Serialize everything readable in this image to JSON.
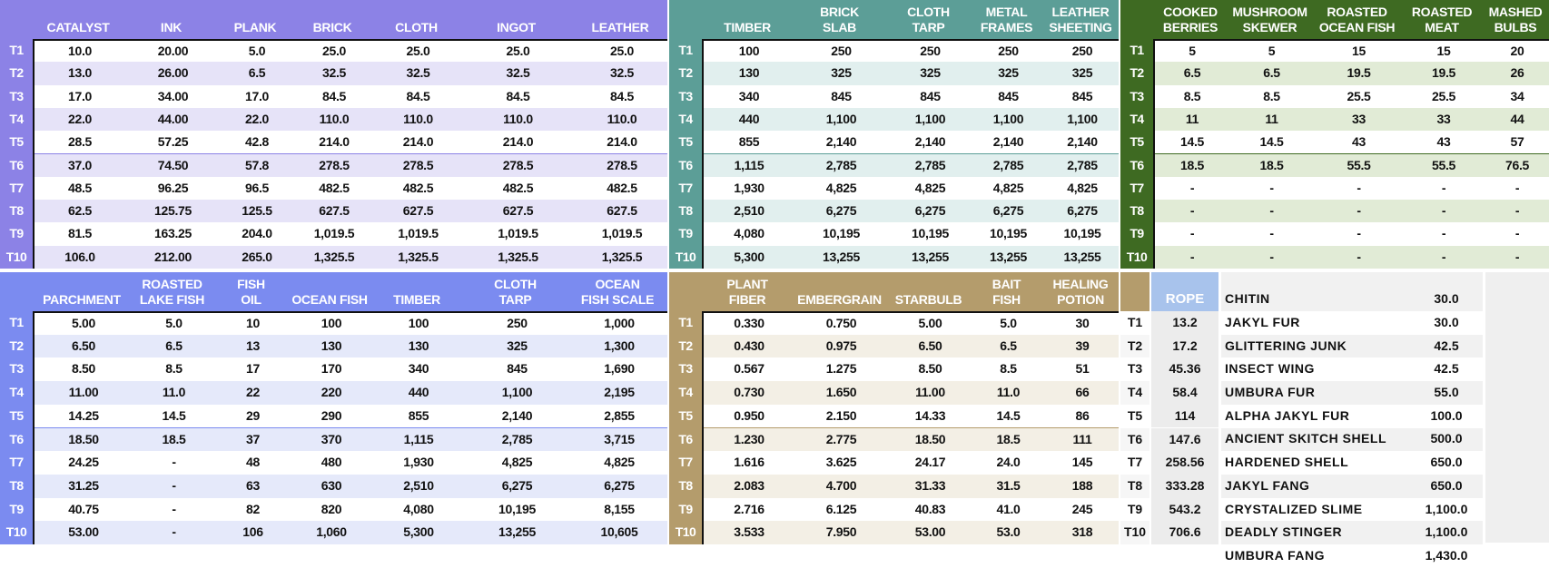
{
  "tiers": [
    "T1",
    "T2",
    "T3",
    "T4",
    "T5",
    "T6",
    "T7",
    "T8",
    "T9",
    "T10"
  ],
  "colors": {
    "purple": "#8c82e6",
    "purple_row": "#e6e3f8",
    "teal": "#5c9e97",
    "teal_row": "#e1efee",
    "green": "#3e6a22",
    "green_row": "#e1ebd6",
    "blue": "#7b8bf0",
    "blue_row": "#e5e9fa",
    "tan": "#b49c6c",
    "tan_row": "#f3efe5",
    "rope": "#a8c3ec"
  },
  "tables": [
    {
      "id": "purple",
      "headers": [
        "CATALYST",
        "INK",
        "PLANK",
        "BRICK",
        "CLOTH",
        "INGOT",
        "LEATHER"
      ],
      "rows": [
        [
          "10.0",
          "20.00",
          "5.0",
          "25.0",
          "25.0",
          "25.0",
          "25.0"
        ],
        [
          "13.0",
          "26.00",
          "6.5",
          "32.5",
          "32.5",
          "32.5",
          "32.5"
        ],
        [
          "17.0",
          "34.00",
          "17.0",
          "84.5",
          "84.5",
          "84.5",
          "84.5"
        ],
        [
          "22.0",
          "44.00",
          "22.0",
          "110.0",
          "110.0",
          "110.0",
          "110.0"
        ],
        [
          "28.5",
          "57.25",
          "42.8",
          "214.0",
          "214.0",
          "214.0",
          "214.0"
        ],
        [
          "37.0",
          "74.50",
          "57.8",
          "278.5",
          "278.5",
          "278.5",
          "278.5"
        ],
        [
          "48.5",
          "96.25",
          "96.5",
          "482.5",
          "482.5",
          "482.5",
          "482.5"
        ],
        [
          "62.5",
          "125.75",
          "125.5",
          "627.5",
          "627.5",
          "627.5",
          "627.5"
        ],
        [
          "81.5",
          "163.25",
          "204.0",
          "1,019.5",
          "1,019.5",
          "1,019.5",
          "1,019.5"
        ],
        [
          "106.0",
          "212.00",
          "265.0",
          "1,325.5",
          "1,325.5",
          "1,325.5",
          "1,325.5"
        ]
      ]
    },
    {
      "id": "teal",
      "headers": [
        "TIMBER",
        "BRICK\nSLAB",
        "CLOTH\nTARP",
        "METAL\nFRAMES",
        "LEATHER\nSHEETING"
      ],
      "rows": [
        [
          "100",
          "250",
          "250",
          "250",
          "250"
        ],
        [
          "130",
          "325",
          "325",
          "325",
          "325"
        ],
        [
          "340",
          "845",
          "845",
          "845",
          "845"
        ],
        [
          "440",
          "1,100",
          "1,100",
          "1,100",
          "1,100"
        ],
        [
          "855",
          "2,140",
          "2,140",
          "2,140",
          "2,140"
        ],
        [
          "1,115",
          "2,785",
          "2,785",
          "2,785",
          "2,785"
        ],
        [
          "1,930",
          "4,825",
          "4,825",
          "4,825",
          "4,825"
        ],
        [
          "2,510",
          "6,275",
          "6,275",
          "6,275",
          "6,275"
        ],
        [
          "4,080",
          "10,195",
          "10,195",
          "10,195",
          "10,195"
        ],
        [
          "5,300",
          "13,255",
          "13,255",
          "13,255",
          "13,255"
        ]
      ]
    },
    {
      "id": "green",
      "headers": [
        "COOKED\nBERRIES",
        "MUSHROOM\nSKEWER",
        "ROASTED\nOCEAN FISH",
        "ROASTED\nMEAT",
        "MASHED\nBULBS"
      ],
      "rows": [
        [
          "5",
          "5",
          "15",
          "15",
          "20"
        ],
        [
          "6.5",
          "6.5",
          "19.5",
          "19.5",
          "26"
        ],
        [
          "8.5",
          "8.5",
          "25.5",
          "25.5",
          "34"
        ],
        [
          "11",
          "11",
          "33",
          "33",
          "44"
        ],
        [
          "14.5",
          "14.5",
          "43",
          "43",
          "57"
        ],
        [
          "18.5",
          "18.5",
          "55.5",
          "55.5",
          "76.5"
        ],
        [
          "-",
          "-",
          "-",
          "-",
          "-"
        ],
        [
          "-",
          "-",
          "-",
          "-",
          "-"
        ],
        [
          "-",
          "-",
          "-",
          "-",
          "-"
        ],
        [
          "-",
          "-",
          "-",
          "-",
          "-"
        ]
      ]
    },
    {
      "id": "blue",
      "headers": [
        "PARCHMENT",
        "ROASTED\nLAKE FISH",
        "FISH\nOIL",
        "OCEAN FISH",
        "TIMBER",
        "CLOTH\nTARP",
        "OCEAN\nFISH SCALE"
      ],
      "rows": [
        [
          "5.00",
          "5.0",
          "10",
          "100",
          "100",
          "250",
          "1,000"
        ],
        [
          "6.50",
          "6.5",
          "13",
          "130",
          "130",
          "325",
          "1,300"
        ],
        [
          "8.50",
          "8.5",
          "17",
          "170",
          "340",
          "845",
          "1,690"
        ],
        [
          "11.00",
          "11.0",
          "22",
          "220",
          "440",
          "1,100",
          "2,195"
        ],
        [
          "14.25",
          "14.5",
          "29",
          "290",
          "855",
          "2,140",
          "2,855"
        ],
        [
          "18.50",
          "18.5",
          "37",
          "370",
          "1,115",
          "2,785",
          "3,715"
        ],
        [
          "24.25",
          "-",
          "48",
          "480",
          "1,930",
          "4,825",
          "4,825"
        ],
        [
          "31.25",
          "-",
          "63",
          "630",
          "2,510",
          "6,275",
          "6,275"
        ],
        [
          "40.75",
          "-",
          "82",
          "820",
          "4,080",
          "10,195",
          "8,155"
        ],
        [
          "53.00",
          "-",
          "106",
          "1,060",
          "5,300",
          "13,255",
          "10,605"
        ]
      ]
    },
    {
      "id": "tan",
      "headers": [
        "PLANT\nFIBER",
        "EMBERGRAIN",
        "STARBULB",
        "BAIT\nFISH",
        "HEALING\nPOTION"
      ],
      "rows": [
        [
          "0.330",
          "0.750",
          "5.00",
          "5.0",
          "30"
        ],
        [
          "0.430",
          "0.975",
          "6.50",
          "6.5",
          "39"
        ],
        [
          "0.567",
          "1.275",
          "8.50",
          "8.5",
          "51"
        ],
        [
          "0.730",
          "1.650",
          "11.00",
          "11.0",
          "66"
        ],
        [
          "0.950",
          "2.150",
          "14.33",
          "14.5",
          "86"
        ],
        [
          "1.230",
          "2.775",
          "18.50",
          "18.5",
          "111"
        ],
        [
          "1.616",
          "3.625",
          "24.17",
          "24.0",
          "145"
        ],
        [
          "2.083",
          "4.700",
          "31.33",
          "31.5",
          "188"
        ],
        [
          "2.716",
          "6.125",
          "40.83",
          "41.0",
          "245"
        ],
        [
          "3.533",
          "7.950",
          "53.00",
          "53.0",
          "318"
        ]
      ]
    }
  ],
  "rope": {
    "header": "ROPE",
    "values": [
      "13.2",
      "17.2",
      "45.36",
      "58.4",
      "114",
      "147.6",
      "258.56",
      "333.28",
      "543.2",
      "706.6"
    ]
  },
  "materials": [
    [
      "CHITIN",
      "30.0"
    ],
    [
      "JAKYL FUR",
      "30.0"
    ],
    [
      "GLITTERING JUNK",
      "42.5"
    ],
    [
      "INSECT WING",
      "42.5"
    ],
    [
      "UMBURA FUR",
      "55.0"
    ],
    [
      "ALPHA JAKYL FUR",
      "100.0"
    ],
    [
      "ANCIENT SKITCH SHELL",
      "500.0"
    ],
    [
      "HARDENED SHELL",
      "650.0"
    ],
    [
      "JAKYL FANG",
      "650.0"
    ],
    [
      "CRYSTALIZED SLIME",
      "1,100.0"
    ],
    [
      "DEADLY STINGER",
      "1,100.0"
    ],
    [
      "UMBURA FANG",
      "1,430.0"
    ]
  ]
}
